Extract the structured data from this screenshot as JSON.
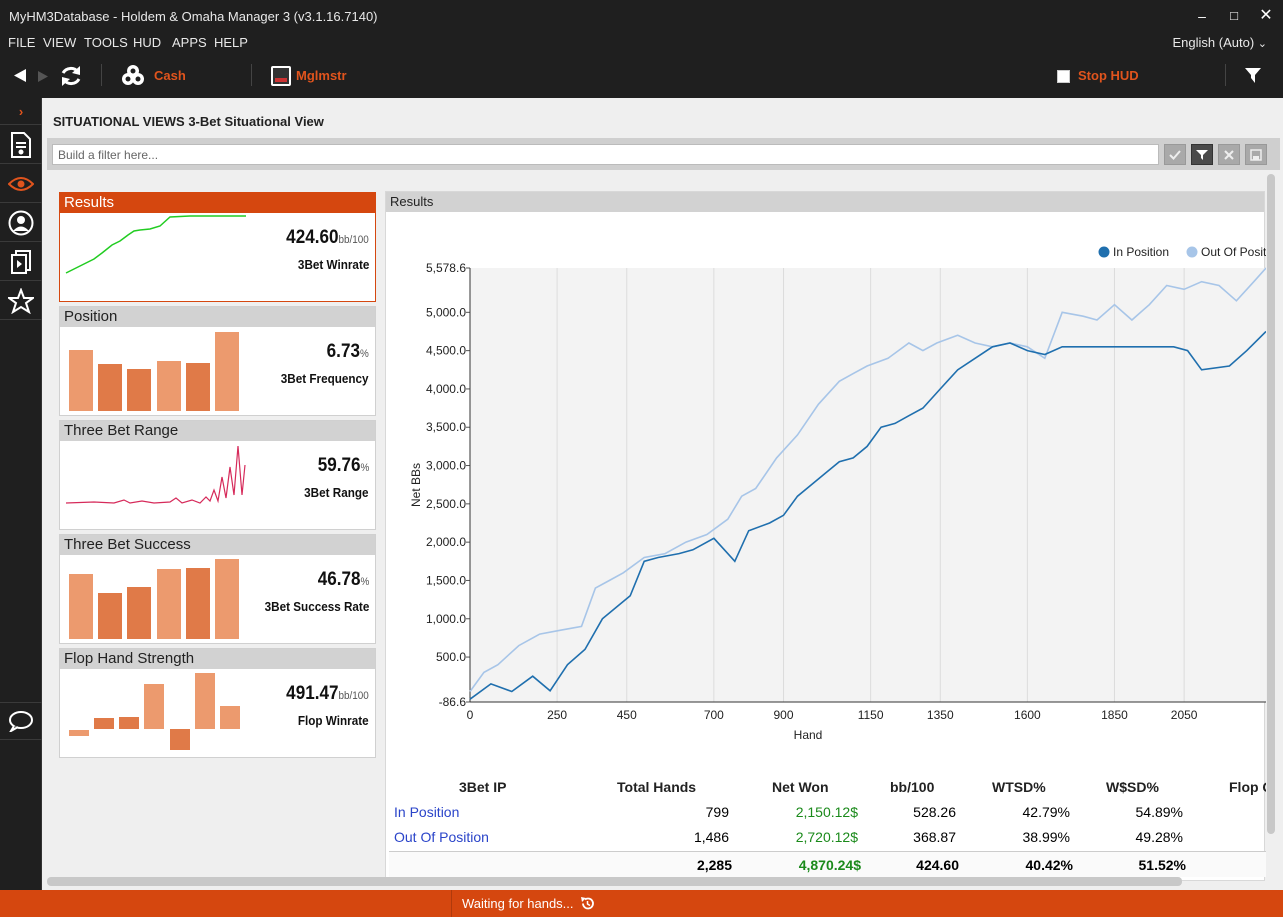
{
  "window": {
    "title": "MyHM3Database - Holdem & Omaha Manager 3 (v3.1.16.7140)"
  },
  "menu": {
    "items": [
      "FILE",
      "VIEW",
      "TOOLS",
      "HUD",
      "APPS",
      "HELP"
    ],
    "language": "English (Auto)"
  },
  "toolbar": {
    "cash_label": "Cash",
    "player_label": "Mglmstr",
    "stop_hud_label": "Stop HUD"
  },
  "page": {
    "section": "SITUATIONAL VIEWS",
    "title": "3-Bet Situational View",
    "filter_placeholder": "Build a filter here..."
  },
  "cards": [
    {
      "header": "Results",
      "value": "424.60",
      "unit": "bb/100",
      "label": "3Bet Winrate"
    },
    {
      "header": "Position",
      "value": "6.73",
      "unit": "%",
      "label": "3Bet Frequency"
    },
    {
      "header": "Three Bet Range",
      "value": "59.76",
      "unit": "%",
      "label": "3Bet Range"
    },
    {
      "header": "Three Bet Success",
      "value": "46.78",
      "unit": "%",
      "label": "3Bet Success Rate"
    },
    {
      "header": "Flop Hand Strength",
      "value": "491.47",
      "unit": "bb/100",
      "label": "Flop Winrate"
    }
  ],
  "results": {
    "header": "Results"
  },
  "chart_data": {
    "type": "line",
    "xlabel": "Hand",
    "ylabel": "Net BBs",
    "xticks": [
      0,
      250,
      450,
      700,
      900,
      1150,
      1350,
      1600,
      1850,
      2050
    ],
    "yticks": [
      -86.6,
      500.0,
      1000.0,
      1500.0,
      2000.0,
      2500.0,
      3000.0,
      3500.0,
      4000.0,
      4500.0,
      5000.0,
      5578.6
    ],
    "ytick_labels": [
      "-86.6",
      "500.0",
      "1,000.0",
      "1,500.0",
      "2,000.0",
      "2,500.0",
      "3,000.0",
      "3,500.0",
      "4,000.0",
      "4,500.0",
      "5,000.0",
      "5,578.6"
    ],
    "xlim": [
      0,
      2285
    ],
    "ylim": [
      -86.6,
      5578.6
    ],
    "grid": true,
    "legend_position": "top-right",
    "series": [
      {
        "name": "In Position",
        "color": "#1f6fae",
        "x": [
          0,
          60,
          120,
          180,
          230,
          280,
          330,
          380,
          420,
          460,
          500,
          540,
          600,
          640,
          700,
          740,
          760,
          800,
          860,
          900,
          940,
          980,
          1020,
          1060,
          1100,
          1140,
          1180,
          1220,
          1260,
          1300,
          1350,
          1400,
          1450,
          1500,
          1550,
          1600,
          1650,
          1700,
          1800,
          1900,
          1980,
          2020,
          2060,
          2100,
          2180,
          2230,
          2285
        ],
        "y": [
          -50,
          150,
          50,
          250,
          60,
          400,
          600,
          1000,
          1150,
          1300,
          1750,
          1800,
          1850,
          1900,
          2050,
          1850,
          1750,
          2150,
          2250,
          2350,
          2600,
          2750,
          2900,
          3050,
          3100,
          3250,
          3500,
          3550,
          3650,
          3750,
          4000,
          4250,
          4400,
          4550,
          4600,
          4500,
          4450,
          4550,
          4550,
          4550,
          4550,
          4550,
          4500,
          4250,
          4300,
          4500,
          4750
        ]
      },
      {
        "name": "Out Of Position",
        "color": "#a7c5e8",
        "x": [
          0,
          40,
          80,
          140,
          200,
          260,
          320,
          360,
          400,
          440,
          500,
          560,
          620,
          680,
          740,
          780,
          820,
          880,
          940,
          1000,
          1060,
          1100,
          1140,
          1200,
          1260,
          1300,
          1340,
          1400,
          1450,
          1500,
          1550,
          1600,
          1650,
          1700,
          1760,
          1800,
          1850,
          1900,
          1950,
          2000,
          2050,
          2100,
          2150,
          2200,
          2250,
          2285
        ],
        "y": [
          50,
          300,
          400,
          650,
          800,
          850,
          900,
          1400,
          1500,
          1600,
          1800,
          1850,
          2000,
          2100,
          2300,
          2600,
          2700,
          3100,
          3400,
          3800,
          4100,
          4200,
          4300,
          4400,
          4600,
          4500,
          4600,
          4700,
          4600,
          4550,
          4600,
          4550,
          4400,
          5000,
          4950,
          4900,
          5100,
          4900,
          5100,
          5350,
          5300,
          5400,
          5350,
          5150,
          5400,
          5578
        ]
      }
    ]
  },
  "table": {
    "headers": [
      "3Bet IP",
      "Total Hands",
      "Net Won",
      "bb/100",
      "WTSD%",
      "W$SD%",
      "Flop C"
    ],
    "rows": [
      {
        "name": "In Position",
        "hands": "799",
        "net_won": "2,150.12$",
        "bb100": "528.26",
        "wtsd": "42.79%",
        "wssd": "54.89%"
      },
      {
        "name": "Out Of Position",
        "hands": "1,486",
        "net_won": "2,720.12$",
        "bb100": "368.87",
        "wtsd": "38.99%",
        "wssd": "49.28%"
      }
    ],
    "total": {
      "hands": "2,285",
      "net_won": "4,870.24$",
      "bb100": "424.60",
      "wtsd": "40.42%",
      "wssd": "51.52%"
    }
  },
  "status": {
    "text": "Waiting for hands..."
  },
  "colors": {
    "accent": "#d5470f",
    "chrome": "#1f1f1f",
    "bar_light": "#ec9a6e",
    "bar_dark": "#e07a48"
  }
}
